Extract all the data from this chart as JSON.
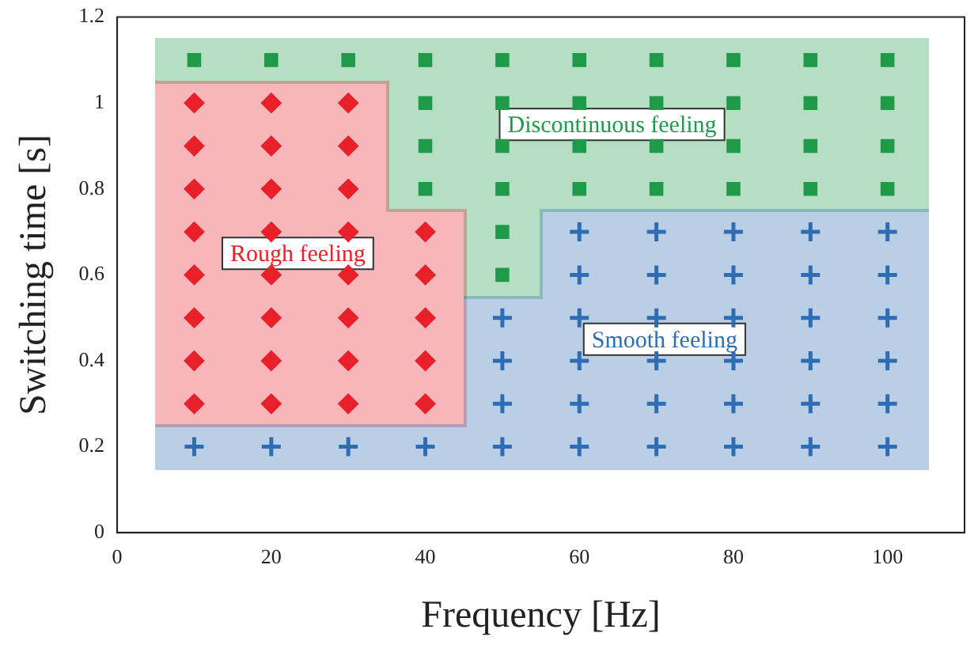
{
  "chart_data": {
    "type": "scatter",
    "xlabel": "Frequency [Hz]",
    "ylabel": "Switching time [s]",
    "xlim": [
      0,
      110
    ],
    "xticks": [
      0,
      20,
      40,
      60,
      80,
      100
    ],
    "ylim": [
      0,
      1.2
    ],
    "yticks": [
      0,
      0.2,
      0.4,
      0.6,
      0.8,
      1,
      1.2
    ],
    "grid": false,
    "legend": false,
    "series": [
      {
        "color": "#1e9a48",
        "marker": "square",
        "x": [
          10,
          20,
          30,
          40,
          50,
          60,
          70,
          80,
          90,
          100,
          40,
          40,
          40,
          50,
          50,
          50,
          50,
          50,
          60,
          60,
          60,
          70,
          70,
          70,
          80,
          80,
          80,
          90,
          90,
          90,
          100,
          100,
          100
        ],
        "values": [
          1.1,
          1.1,
          1.1,
          1.1,
          1.1,
          1.1,
          1.1,
          1.1,
          1.1,
          1.1,
          0.8,
          0.9,
          1,
          0.6,
          0.7,
          0.8,
          0.9,
          1,
          0.8,
          0.9,
          1,
          0.8,
          0.9,
          1,
          0.8,
          0.9,
          1,
          0.8,
          0.9,
          1,
          0.8,
          0.9,
          1
        ]
      },
      {
        "color": "#e8202a",
        "marker": "diamond",
        "x": [
          10,
          10,
          10,
          10,
          10,
          10,
          10,
          10,
          20,
          20,
          20,
          20,
          20,
          20,
          20,
          20,
          30,
          30,
          30,
          30,
          30,
          30,
          30,
          30,
          40,
          40,
          40,
          40,
          40
        ],
        "values": [
          0.3,
          0.4,
          0.5,
          0.6,
          0.7,
          0.8,
          0.9,
          1,
          0.3,
          0.4,
          0.5,
          0.6,
          0.7,
          0.8,
          0.9,
          1,
          0.3,
          0.4,
          0.5,
          0.6,
          0.7,
          0.8,
          0.9,
          1,
          0.3,
          0.4,
          0.5,
          0.6,
          0.7
        ]
      },
      {
        "color": "#2e6db4",
        "marker": "cross",
        "x": [
          10,
          20,
          30,
          40,
          50,
          60,
          70,
          80,
          90,
          100,
          50,
          50,
          50,
          60,
          60,
          60,
          60,
          60,
          70,
          70,
          70,
          70,
          70,
          80,
          80,
          80,
          80,
          80,
          90,
          90,
          90,
          90,
          90,
          100,
          100,
          100,
          100,
          100
        ],
        "values": [
          0.2,
          0.2,
          0.2,
          0.2,
          0.2,
          0.2,
          0.2,
          0.2,
          0.2,
          0.2,
          0.3,
          0.4,
          0.5,
          0.3,
          0.4,
          0.5,
          0.6,
          0.7,
          0.3,
          0.4,
          0.5,
          0.6,
          0.7,
          0.3,
          0.4,
          0.5,
          0.6,
          0.7,
          0.3,
          0.4,
          0.5,
          0.6,
          0.7,
          0.3,
          0.4,
          0.5,
          0.6,
          0.7
        ]
      }
    ],
    "annotations": [
      "Discontinuous feeling",
      "Rough feeling",
      "Smooth feeling"
    ]
  }
}
